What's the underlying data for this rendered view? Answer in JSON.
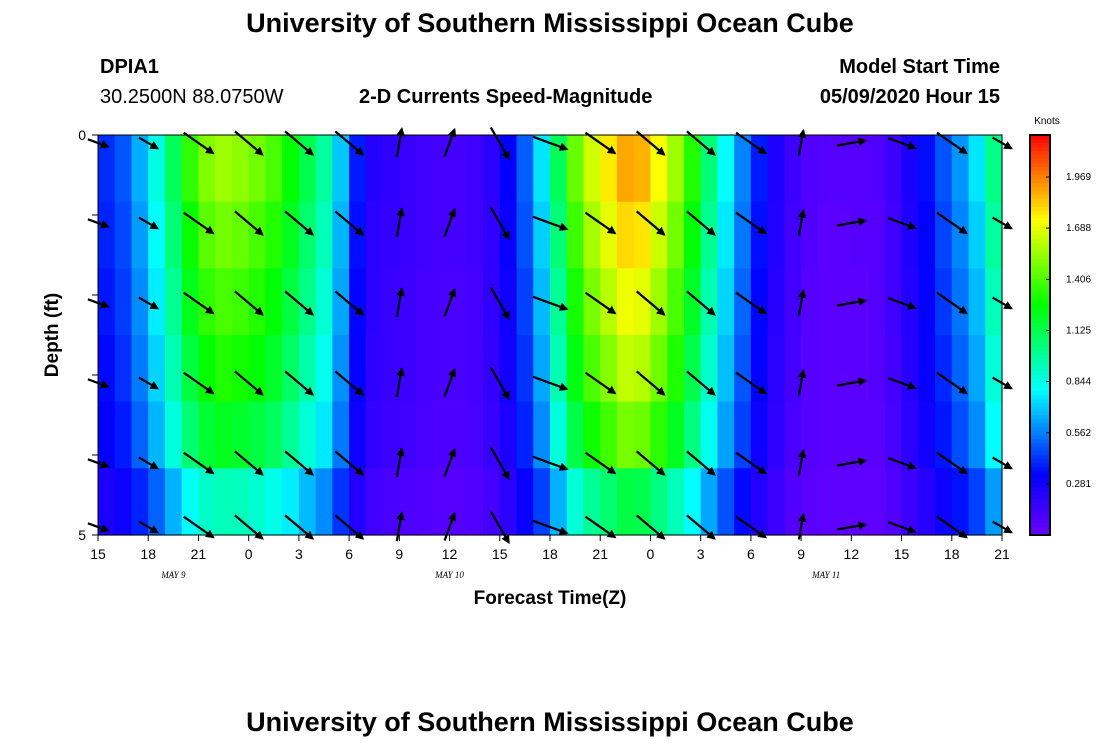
{
  "header": {
    "title": "University of Southern Mississippi Ocean Cube",
    "station_id": "DPIA1",
    "coords": "30.2500N 88.0750W",
    "subtitle": "2-D Currents Speed-Magnitude",
    "model_label": "Model Start Time",
    "model_time": "05/09/2020 Hour 15",
    "footer_title": "University of Southern Mississippi Ocean Cube"
  },
  "chart_data": {
    "type": "heatmap",
    "title": "2-D Currents Speed-Magnitude",
    "xlabel": "Forecast Time(Z)",
    "ylabel": "Depth (ft)",
    "x_ticks": [
      "15",
      "18",
      "21",
      "0",
      "3",
      "6",
      "9",
      "12",
      "15",
      "18",
      "21",
      "0",
      "3",
      "6",
      "9",
      "12",
      "15",
      "18",
      "21"
    ],
    "date_labels": [
      {
        "label": "MAY 9",
        "hour_index": 4.5
      },
      {
        "label": "MAY 10",
        "hour_index": 21
      },
      {
        "label": "MAY 11",
        "hour_index": 43.5
      }
    ],
    "x_range_hours": [
      0,
      54
    ],
    "y_ticks": [
      "0",
      "5"
    ],
    "y_range_ft": [
      0,
      5
    ],
    "depth_layers": 5,
    "colorbar": {
      "unit": "Knots",
      "range": [
        0,
        2.2
      ],
      "ticks": [
        "1.969",
        "1.688",
        "1.406",
        "1.125",
        "0.844",
        "0.562",
        "0.281"
      ],
      "tick_values": [
        1.969,
        1.688,
        1.406,
        1.125,
        0.844,
        0.562,
        0.281
      ]
    },
    "speed_profile": {
      "hours": [
        0,
        1,
        2,
        3,
        4,
        5,
        6,
        7,
        8,
        9,
        10,
        11,
        12,
        13,
        14,
        15,
        16,
        17,
        18,
        19,
        20,
        21,
        22,
        23,
        24,
        25,
        26,
        27,
        28,
        29,
        30,
        31,
        32,
        33,
        34,
        35,
        36,
        37,
        38,
        39,
        40,
        41,
        42,
        43,
        44,
        45,
        46,
        47,
        48,
        49,
        50,
        51,
        52,
        53,
        54
      ],
      "knots": [
        0.4,
        0.42,
        0.55,
        0.75,
        0.95,
        1.25,
        1.45,
        1.55,
        1.55,
        1.5,
        1.45,
        1.35,
        1.2,
        1.05,
        0.9,
        0.5,
        0.25,
        0.18,
        0.18,
        0.15,
        0.12,
        0.12,
        0.12,
        0.15,
        0.25,
        0.4,
        0.6,
        0.9,
        1.3,
        1.6,
        1.7,
        1.85,
        1.95,
        1.8,
        1.65,
        1.45,
        1.2,
        0.9,
        0.7,
        0.45,
        0.3,
        0.18,
        0.1,
        0.06,
        0.06,
        0.06,
        0.07,
        0.08,
        0.2,
        0.3,
        0.4,
        0.55,
        0.65,
        0.85,
        1.2
      ]
    },
    "depth_factors": [
      1.0,
      0.95,
      0.9,
      0.85,
      0.78,
      0.6
    ],
    "vector_times": [
      0,
      3,
      6,
      9,
      12,
      15,
      18,
      21,
      24,
      27,
      30,
      33,
      36,
      39,
      42,
      45,
      48,
      51,
      54
    ],
    "vector_angles_deg": [
      20,
      30,
      35,
      40,
      40,
      40,
      -80,
      -70,
      60,
      20,
      35,
      40,
      40,
      35,
      -80,
      -10,
      20,
      35,
      30
    ],
    "vector_lengths": [
      0.6,
      0.6,
      1.0,
      1.0,
      1.0,
      1.0,
      0.8,
      0.8,
      1.0,
      1.0,
      1.0,
      1.0,
      1.0,
      1.0,
      0.7,
      0.8,
      0.8,
      1.0,
      0.6
    ]
  }
}
